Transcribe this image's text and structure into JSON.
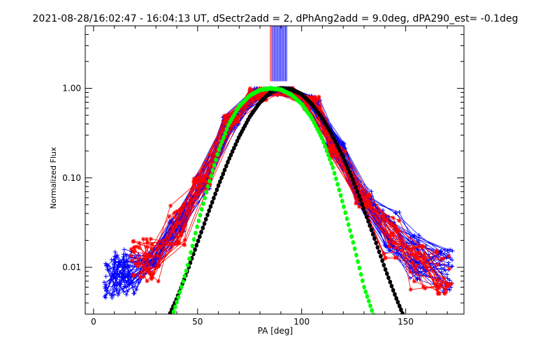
{
  "chart_data": {
    "type": "line",
    "title": "2021-08-28/16:02:47 - 16:04:13 UT, dSectr2add = 2, dPhAng2add = 9.0deg, dPA290_est= -0.1deg",
    "xlabel": "PA [deg]",
    "ylabel": "Normalized Flux",
    "xlim": [
      -4,
      178
    ],
    "ylim": [
      0.003,
      5.0
    ],
    "ylog": true,
    "xticks": [
      0,
      50,
      100,
      150
    ],
    "yticks": [
      0.01,
      0.1,
      1.0
    ],
    "xtick_labels": [
      "0",
      "50",
      "100",
      "150"
    ],
    "ytick_labels": [
      "0.01",
      "0.10",
      "1.00"
    ],
    "legend": "none",
    "grid": false,
    "series": [
      {
        "color": "#0000ff",
        "marker": "+",
        "count": 44,
        "x": [
          9,
          13,
          18,
          28,
          40,
          52,
          66,
          79,
          92,
          105,
          117,
          130,
          143,
          156,
          169
        ],
        "y": [
          0.008,
          0.0085,
          0.009,
          0.012,
          0.03,
          0.09,
          0.42,
          0.85,
          1.0,
          0.7,
          0.22,
          0.06,
          0.025,
          0.013,
          0.009
        ]
      },
      {
        "color": "#ff0000",
        "marker": "*",
        "count": 26,
        "x": [
          22,
          28,
          40,
          52,
          66,
          79,
          92,
          105,
          117,
          130,
          143,
          156,
          168
        ],
        "y": [
          0.012,
          0.012,
          0.03,
          0.09,
          0.45,
          0.87,
          0.99,
          0.68,
          0.2,
          0.055,
          0.022,
          0.01,
          0.009
        ]
      },
      {
        "color": "#000000",
        "marker": "dot",
        "x": [
          36,
          40,
          45,
          50,
          55,
          60,
          65,
          70,
          75,
          80,
          85,
          90,
          95,
          100,
          105,
          110,
          115,
          120,
          125,
          130,
          135,
          140,
          145,
          150
        ],
        "y": [
          0.0028,
          0.0045,
          0.009,
          0.019,
          0.04,
          0.082,
          0.16,
          0.29,
          0.48,
          0.7,
          0.9,
          1.0,
          0.98,
          0.86,
          0.66,
          0.46,
          0.29,
          0.17,
          0.09,
          0.044,
          0.021,
          0.0098,
          0.0048,
          0.0025
        ]
      },
      {
        "color": "#00ff00",
        "marker": "dot",
        "x": [
          37,
          41,
          45,
          50,
          55,
          60,
          65,
          70,
          75,
          80,
          85,
          90,
          95,
          100,
          105,
          110,
          115,
          120,
          125,
          130,
          135
        ],
        "y": [
          0.0025,
          0.0048,
          0.01,
          0.03,
          0.08,
          0.2,
          0.4,
          0.63,
          0.83,
          0.96,
          1.0,
          0.97,
          0.85,
          0.67,
          0.46,
          0.27,
          0.13,
          0.05,
          0.018,
          0.006,
          0.0027
        ]
      }
    ]
  }
}
